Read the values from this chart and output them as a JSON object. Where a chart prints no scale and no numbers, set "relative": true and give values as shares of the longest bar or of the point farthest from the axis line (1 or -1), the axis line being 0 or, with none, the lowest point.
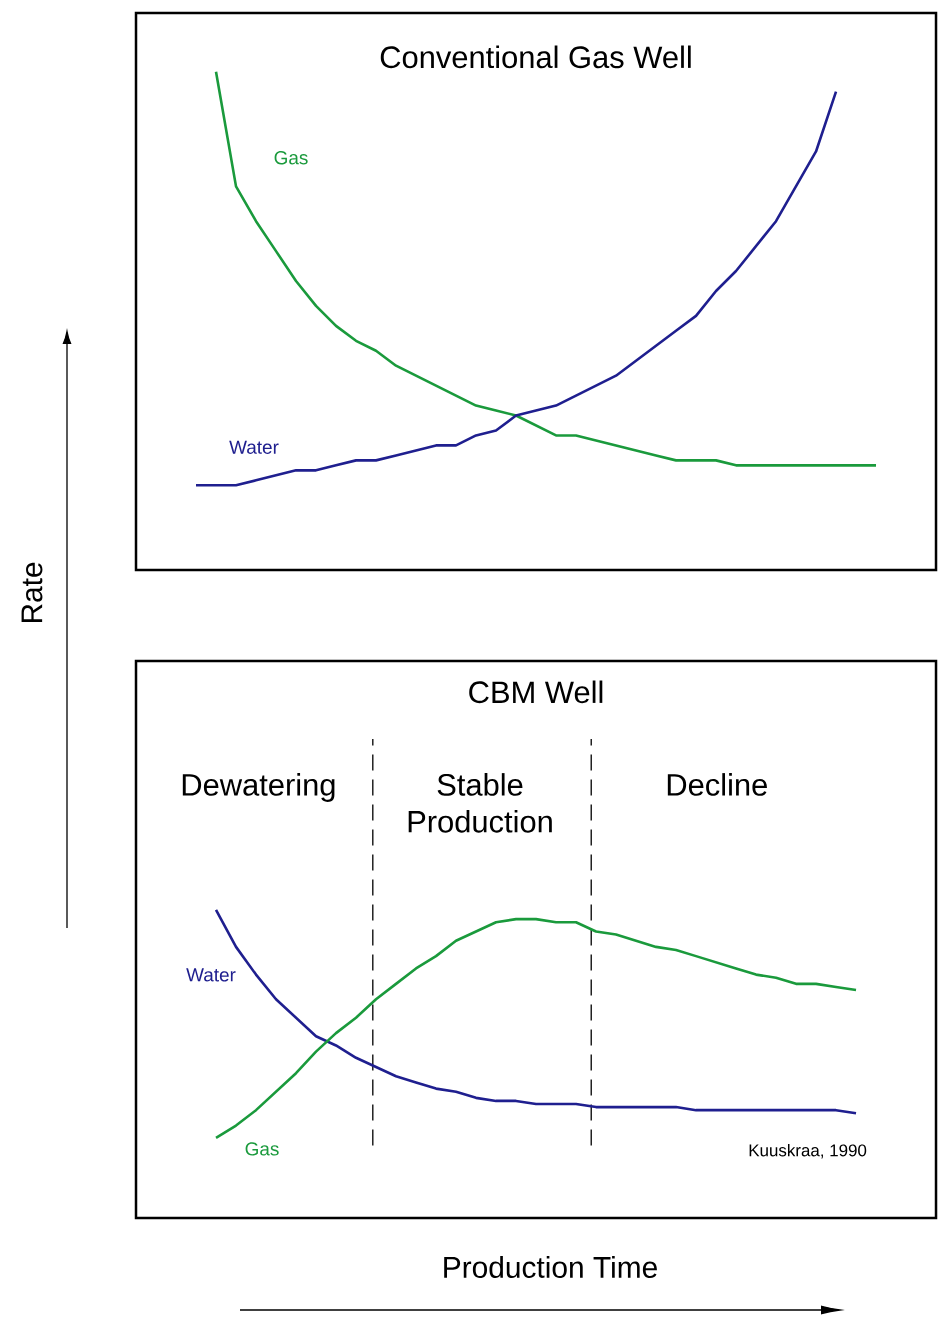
{
  "chart_data": [
    {
      "type": "line",
      "title": "Conventional Gas Well",
      "ylabel": "Rate",
      "relative": true,
      "categories": [
        null,
        null,
        null,
        null,
        null,
        null,
        null,
        null,
        null,
        null,
        null,
        null,
        null,
        null,
        null,
        null,
        null,
        null,
        null,
        null,
        null,
        null,
        null,
        null,
        null,
        null,
        null,
        null,
        null,
        null,
        null,
        null,
        null,
        null,
        null,
        null,
        null,
        null,
        null,
        null,
        null
      ],
      "series": [
        {
          "name": "Gas",
          "color": "#1a9a3c",
          "values": [
            null,
            null,
            null,
            null,
            1,
            0.77,
            0.7,
            0.64,
            0.58,
            0.53,
            0.49,
            0.46,
            0.44,
            0.41,
            0.39,
            0.37,
            0.35,
            0.33,
            0.32,
            0.31,
            0.29,
            0.27,
            0.27,
            0.26,
            0.25,
            0.24,
            0.23,
            0.22,
            0.22,
            0.22,
            0.21,
            0.21,
            0.21,
            0.21,
            0.21,
            0.21,
            0.21,
            0.21,
            null,
            null,
            null
          ]
        },
        {
          "name": "Water",
          "color": "#1f1f8f",
          "values": [
            null,
            null,
            null,
            0.17,
            0.17,
            0.17,
            0.18,
            0.19,
            0.2,
            0.2,
            0.21,
            0.22,
            0.22,
            0.23,
            0.24,
            0.25,
            0.25,
            0.27,
            0.28,
            0.31,
            0.32,
            0.33,
            0.35,
            0.37,
            0.39,
            0.42,
            0.45,
            0.48,
            0.51,
            0.56,
            0.6,
            0.65,
            0.7,
            0.77,
            0.84,
            0.96,
            null,
            null,
            null,
            null,
            null
          ]
        }
      ]
    },
    {
      "type": "line",
      "title": "CBM Well",
      "xlabel": "Production Time",
      "relative": true,
      "categories": [
        null,
        null,
        null,
        null,
        null,
        null,
        null,
        null,
        null,
        null,
        null,
        null,
        null,
        null,
        null,
        null,
        null,
        null,
        null,
        null,
        null,
        null,
        null,
        null,
        null,
        null,
        null,
        null,
        null,
        null,
        null,
        null,
        null,
        null,
        null,
        null,
        null,
        null,
        null,
        null,
        null
      ],
      "series": [
        {
          "name": "Water",
          "color": "#1f1f8f",
          "values": [
            null,
            null,
            null,
            null,
            1,
            0.88,
            0.79,
            0.71,
            0.65,
            0.59,
            0.56,
            0.52,
            0.49,
            0.46,
            0.44,
            0.42,
            0.41,
            0.39,
            0.38,
            0.38,
            0.37,
            0.37,
            0.37,
            0.36,
            0.36,
            0.36,
            0.36,
            0.36,
            0.35,
            0.35,
            0.35,
            0.35,
            0.35,
            0.35,
            0.35,
            0.35,
            0.34,
            null,
            null,
            null,
            null
          ]
        },
        {
          "name": "Gas",
          "color": "#1a9a3c",
          "values": [
            null,
            null,
            null,
            null,
            0.26,
            0.3,
            0.35,
            0.41,
            0.47,
            0.54,
            0.6,
            0.65,
            0.71,
            0.76,
            0.81,
            0.85,
            0.9,
            0.93,
            0.96,
            0.97,
            0.97,
            0.96,
            0.96,
            0.93,
            0.92,
            0.9,
            0.88,
            0.87,
            0.85,
            0.83,
            0.81,
            0.79,
            0.78,
            0.76,
            0.76,
            0.75,
            0.74,
            null,
            null,
            null,
            null
          ]
        }
      ],
      "annotations": [
        "Dewatering",
        "Stable Production",
        "Decline",
        "Kuuskraa, 1990"
      ]
    }
  ]
}
